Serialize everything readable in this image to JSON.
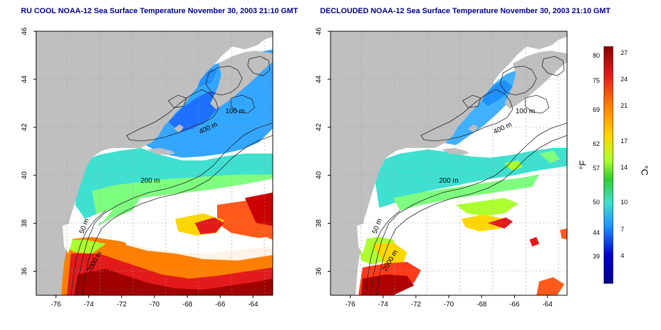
{
  "panels": [
    {
      "title": "RU COOL NOAA-12 Sea Surface Temperature November 30, 2003 21:10 GMT",
      "variant": "raw"
    },
    {
      "title": "DECLOUDED NOAA-12 Sea Surface Temperature November 30, 2003 21:10 GMT",
      "variant": "declouded"
    }
  ],
  "map": {
    "lat_ticks": [
      "46",
      "44",
      "42",
      "40",
      "38",
      "36"
    ],
    "lon_ticks": [
      "-76",
      "-74",
      "-72",
      "-70",
      "-68",
      "-66",
      "-64"
    ],
    "lat_range": [
      35,
      46
    ],
    "lon_range": [
      -77.2,
      -62.8
    ],
    "contour_labels": [
      "100 m",
      "400 m",
      "200 m",
      "50 m",
      "2000 m"
    ],
    "land_color": "#bfbfbf",
    "cloud_color": "#ffffff"
  },
  "colorbar": {
    "f_label": "°F",
    "c_label": "°C",
    "f_ticks": [
      "80",
      "75",
      "69",
      "62",
      "57",
      "50",
      "44",
      "39"
    ],
    "c_ticks": [
      "27",
      "24",
      "21",
      "17",
      "14",
      "10",
      "7",
      "4"
    ],
    "colors": [
      "#8b0000",
      "#e31a1c",
      "#ff7f00",
      "#ffd700",
      "#adff2f",
      "#32cd32",
      "#40e0d0",
      "#1e90ff",
      "#0000cd",
      "#00008b"
    ]
  }
}
